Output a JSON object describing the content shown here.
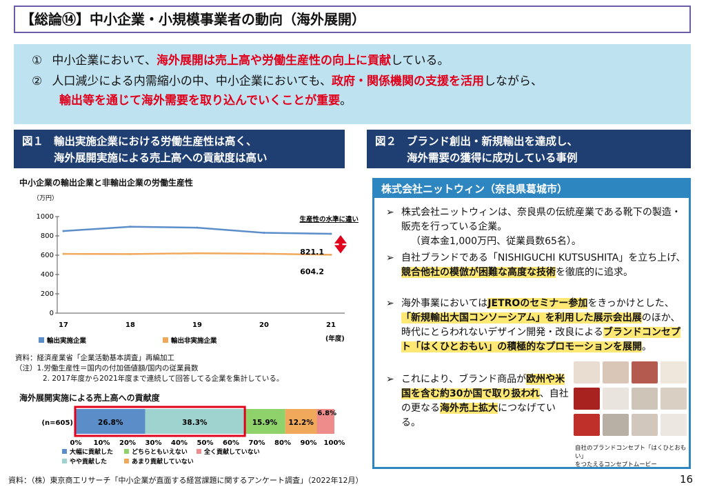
{
  "title": "【総論⑭】中小企業・小規模事業者の動向（海外展開）",
  "summary": {
    "p1": {
      "num": "①",
      "a": "中小企業において、",
      "b": "海外展開は売上高や労働生産性の向上に貢献",
      "c": "している。"
    },
    "p2": {
      "num": "②",
      "a": "人口減少による内需縮小の中、中小企業においても、",
      "b": "政府・関係機関の支援を活用",
      "c": "しながら、",
      "d": "輸出等を通じて海外需要を取り込んでいくことが重要",
      "e": "。"
    }
  },
  "fig1": {
    "label": "図１",
    "line1": "輸出実施企業における労働生産性は高く、",
    "line2": "海外展開実施による売上高への貢献度は高い"
  },
  "fig2": {
    "label": "図２",
    "line1": "ブランド創出・新規輸出を達成し、",
    "line2": "海外需要の獲得に成功している事例"
  },
  "chart1_title": "中小企業の輸出企業と非輸出企業の労働生産性",
  "chart1_unit": "（万円）",
  "chart1_annotation": "生産性の水準に違い",
  "chart1_xunit": "(年度)",
  "notes": {
    "source1": "資料：経済産業省「企業活動基本調査」再編加工",
    "n1": "（注）1.労働生産性＝国内の付加価値額/国内の従業員数",
    "n2": "2. 2017年度から2021年度まで連続して回答してる企業を集計している。"
  },
  "chart2_title": "海外展開実施による売上高への貢献度",
  "chart2_n": "(n=605)",
  "source2": "資料：（株）東京商工リサーチ「中小企業が直面する経営課題に関するアンケート調査」（2022年12月）",
  "page_number": "16",
  "company": "株式会社ニットウィン（奈良県葛城市）",
  "bullets": {
    "marker": "➢",
    "b1a": "株式会社ニットウィンは、奈良県の伝統産業である靴下の製造・販売を行っている企業。",
    "b1b": "（資本金1,000万円、従業員数65名）。",
    "b2a": "自社ブランドである「NISHIGUCHI KUTSUSHITA」を立ち上げ、",
    "b2b": "競合他社の模倣が困難な高度な技術",
    "b2c": "を徹底的に追求。",
    "b3a": "海外事業においては",
    "b3b": "JETROのセミナー参加",
    "b3c": "をきっかけとした、",
    "b3d": "「新規輸出大国コンソーシアム」を利用した展示会出展",
    "b3e": "のほか、時代にとらわれないデザイン開発・改良による",
    "b3f": "ブランドコンセプト「はくひとおもい」の積極的なプロモーションを展開",
    "b3g": "。",
    "b4a": "これにより、ブランド商品が",
    "b4b": "欧州や米国を含む約30か国で取り扱われ",
    "b4c": "、自社の更なる",
    "b4d": "海外売上拡大",
    "b4e": "につなげている。"
  },
  "photo_caption1": "自社のブランドコンセプト「はくひとおもい」",
  "photo_caption2": "をつたえるコンセプトムービー",
  "colors": {
    "export": "#5b8ec9",
    "nonexport": "#f0a85a",
    "highlight": "#ffe873",
    "red": "#e0001b",
    "navy": "#1f3f73",
    "blue": "#2e86c1"
  },
  "chart_data": [
    {
      "type": "line",
      "title": "中小企業の輸出企業と非輸出企業の労働生産性",
      "ylabel": "（万円）",
      "xlabel": "(年度)",
      "x": [
        "17",
        "18",
        "19",
        "20",
        "21"
      ],
      "yticks": [
        0,
        200,
        400,
        600,
        800,
        1000
      ],
      "ylim": [
        0,
        1000
      ],
      "series": [
        {
          "name": "輸出実施企業",
          "values": [
            850,
            895,
            885,
            832,
            821.1
          ],
          "color": "#5b8ec9"
        },
        {
          "name": "輸出非実施企業",
          "values": [
            613,
            612,
            620,
            615,
            604.2
          ],
          "color": "#f0a85a"
        }
      ],
      "labels": [
        "821.1",
        "604.2"
      ],
      "legend": "bottom"
    },
    {
      "type": "bar",
      "orientation": "horizontal-stacked",
      "title": "海外展開実施による売上高への貢献度",
      "categories": [
        "(n=605)"
      ],
      "xticks": [
        "0%",
        "10%",
        "20%",
        "30%",
        "40%",
        "50%",
        "60%",
        "70%",
        "80%",
        "90%",
        "100%"
      ],
      "series": [
        {
          "name": "大幅に貢献した",
          "value": 26.8,
          "label": "26.8%",
          "color": "#5b8ec9"
        },
        {
          "name": "やや貢献した",
          "value": 38.3,
          "label": "38.3%",
          "color": "#9fd3cf"
        },
        {
          "name": "どちらともいえない",
          "value": 15.9,
          "label": "15.9%",
          "color": "#8fd16a"
        },
        {
          "name": "あまり貢献していない",
          "value": 12.2,
          "label": "12.2%",
          "color": "#f0a85a"
        },
        {
          "name": "全く貢献していない",
          "value": 6.8,
          "label": "6.8%",
          "color": "#ee8c8c"
        }
      ],
      "legend": "bottom"
    }
  ]
}
